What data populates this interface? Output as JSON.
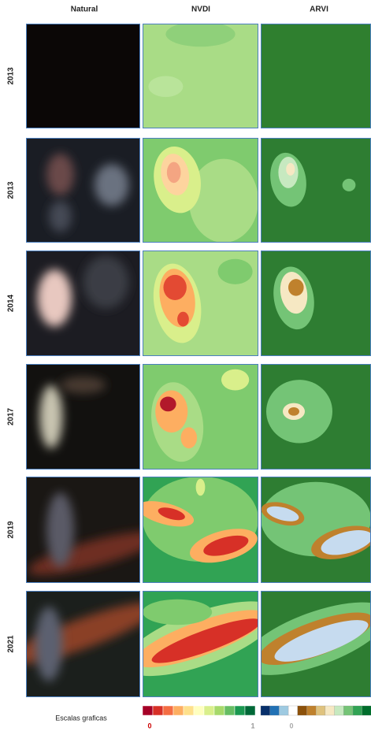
{
  "headers": [
    "Natural",
    "NVDI",
    "ARVI"
  ],
  "rows": [
    {
      "year": "2013"
    },
    {
      "year": "2013"
    },
    {
      "year": "2014"
    },
    {
      "year": "2017"
    },
    {
      "year": "2019"
    },
    {
      "year": "2021"
    }
  ],
  "legend": {
    "title": "Escalas graficas",
    "nvdi_labels": [
      "0",
      "1"
    ],
    "arvi_labels": [
      "0"
    ]
  }
}
